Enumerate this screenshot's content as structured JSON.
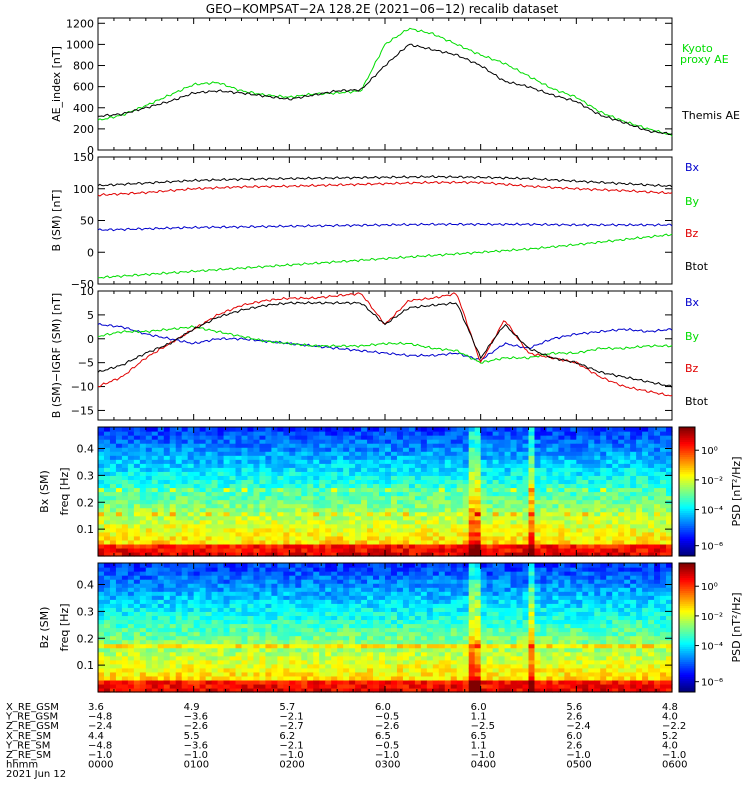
{
  "title": "GEO−KOMPSAT−2A 128.2E (2021−06−12) recalib dataset",
  "colors": {
    "black": "#000000",
    "red": "#e00000",
    "blue": "#0000cc",
    "green": "#00dd00"
  },
  "chart_data": [
    {
      "type": "line",
      "ylabel": "AE_index [nT]",
      "ylim": [
        0,
        1250
      ],
      "yticks": [
        "0",
        "200",
        "400",
        "600",
        "800",
        "1000",
        "1200"
      ],
      "x": [
        0,
        0.25,
        0.5,
        0.75,
        1,
        1.25,
        1.5,
        1.75,
        2,
        2.25,
        2.5,
        2.75,
        3,
        3.25,
        3.5,
        3.75,
        4,
        4.25,
        4.5,
        4.75,
        5,
        5.25,
        5.5,
        5.75,
        6
      ],
      "series": [
        {
          "name": "Kyoto proxy AE",
          "color": "#00dd00",
          "values": [
            280,
            330,
            420,
            520,
            620,
            640,
            560,
            520,
            500,
            530,
            540,
            560,
            1000,
            1150,
            1100,
            1000,
            900,
            820,
            700,
            580,
            500,
            360,
            270,
            200,
            140
          ]
        },
        {
          "name": "Themis AE",
          "color": "#000000",
          "values": [
            320,
            340,
            400,
            460,
            540,
            560,
            540,
            510,
            480,
            520,
            560,
            570,
            800,
            1000,
            950,
            900,
            800,
            650,
            600,
            520,
            460,
            330,
            260,
            180,
            150
          ]
        }
      ]
    },
    {
      "type": "line",
      "ylabel": "B (SM) [nT]",
      "ylim": [
        -50,
        150
      ],
      "yticks": [
        "−50",
        "0",
        "50",
        "100",
        "150"
      ],
      "x": [
        0,
        0.5,
        1,
        1.5,
        2,
        2.5,
        3,
        3.5,
        4,
        4.5,
        5,
        5.5,
        6
      ],
      "series": [
        {
          "name": "Bx",
          "color": "#0000cc",
          "values": [
            35,
            37,
            39,
            40,
            41,
            42,
            43,
            44,
            44,
            44,
            43,
            43,
            43
          ]
        },
        {
          "name": "By",
          "color": "#00dd00",
          "values": [
            -40,
            -35,
            -30,
            -25,
            -20,
            -15,
            -10,
            -5,
            0,
            5,
            12,
            20,
            28
          ]
        },
        {
          "name": "Bz",
          "color": "#e00000",
          "values": [
            90,
            94,
            100,
            103,
            104,
            106,
            108,
            110,
            110,
            104,
            100,
            97,
            93
          ]
        },
        {
          "name": "Btot",
          "color": "#000000",
          "values": [
            105,
            109,
            113,
            115,
            116,
            117,
            118,
            119,
            118,
            116,
            112,
            108,
            104
          ]
        }
      ]
    },
    {
      "type": "line",
      "ylabel": "B (SM)−IGRF (SM) [nT]",
      "ylim": [
        -17,
        10
      ],
      "yticks": [
        "−15",
        "−10",
        "−5",
        "0",
        "5",
        "10"
      ],
      "x": [
        0,
        0.25,
        0.5,
        0.75,
        1,
        1.25,
        1.5,
        1.75,
        2,
        2.25,
        2.5,
        2.75,
        3,
        3.25,
        3.5,
        3.75,
        4,
        4.25,
        4.5,
        4.75,
        5,
        5.25,
        5.5,
        5.75,
        6
      ],
      "series": [
        {
          "name": "Bx",
          "color": "#0000cc",
          "values": [
            3,
            2.5,
            1,
            0,
            -1,
            0,
            0,
            -0.5,
            -1,
            -1.5,
            -2,
            -2.5,
            -3,
            -3.5,
            -3.5,
            -3,
            -4.5,
            -1,
            -2,
            0,
            1,
            1.5,
            2,
            1.5,
            2
          ]
        },
        {
          "name": "By",
          "color": "#00dd00",
          "values": [
            0.5,
            1.5,
            1.5,
            2,
            2.5,
            1.5,
            0.5,
            -0.5,
            -1,
            -1.5,
            -1.5,
            -1.5,
            -1,
            -1,
            -2,
            -2.5,
            -5,
            -4,
            -4,
            -3,
            -3,
            -2,
            -2,
            -1.5,
            -1.5
          ]
        },
        {
          "name": "Bz",
          "color": "#e00000",
          "values": [
            -10,
            -8,
            -4,
            -1,
            2,
            5,
            7,
            8,
            8.5,
            8.5,
            9,
            9.5,
            3,
            8,
            8.5,
            9.5,
            -5,
            4,
            -3,
            -4,
            -5,
            -8,
            -10,
            -11,
            -12
          ]
        },
        {
          "name": "Btot",
          "color": "#000000",
          "values": [
            -7,
            -5.5,
            -3,
            -1,
            2,
            4.5,
            6,
            7,
            7.5,
            7.5,
            7.5,
            7.5,
            3,
            6.5,
            7,
            7.5,
            -4,
            3,
            -2,
            -4,
            -5,
            -7,
            -8,
            -9,
            -10
          ]
        }
      ]
    },
    {
      "type": "heatmap",
      "panel_label": "Bx (SM)",
      "ylabel": "freq [Hz]",
      "ylim": [
        0,
        0.48
      ],
      "yticks": [
        "0.1",
        "0.2",
        "0.3",
        "0.4"
      ],
      "colorbar": {
        "label": "PSD [nT²/Hz]",
        "ticks": [
          "10⁰",
          "10⁻²",
          "10⁻⁴",
          "10⁻⁶"
        ]
      }
    },
    {
      "type": "heatmap",
      "panel_label": "Bz (SM)",
      "ylabel": "freq [Hz]",
      "ylim": [
        0,
        0.48
      ],
      "yticks": [
        "0.1",
        "0.2",
        "0.3",
        "0.4"
      ],
      "colorbar": {
        "label": "PSD [nT²/Hz]",
        "ticks": [
          "10⁰",
          "10⁻²",
          "10⁻⁴",
          "10⁻⁶"
        ]
      }
    }
  ],
  "orbit_table": {
    "labels": [
      "X_RE_GSM",
      "Y_RE_GSM",
      "Z_RE_GSM",
      "X_RE_SM",
      "Y_RE_SM",
      "Z_RE_SM",
      "hhmm"
    ],
    "date": "2021 Jun 12",
    "rows": [
      [
        "3.6",
        "4.9",
        "5.7",
        "6.0",
        "6.0",
        "5.6",
        "4.8"
      ],
      [
        "−4.8",
        "−3.6",
        "−2.1",
        "−0.5",
        "1.1",
        "2.6",
        "4.0"
      ],
      [
        "−2.4",
        "−2.6",
        "−2.7",
        "−2.6",
        "−2.5",
        "−2.4",
        "−2.2"
      ],
      [
        "4.4",
        "5.5",
        "6.2",
        "6.5",
        "6.5",
        "6.0",
        "5.2"
      ],
      [
        "−4.8",
        "−3.6",
        "−2.1",
        "−0.5",
        "1.1",
        "2.6",
        "4.0"
      ],
      [
        "−1.0",
        "−1.0",
        "−1.0",
        "−1.0",
        "−1.0",
        "−1.0",
        "−1.0"
      ],
      [
        "0000",
        "0100",
        "0200",
        "0300",
        "0400",
        "0500",
        "0600"
      ]
    ]
  }
}
